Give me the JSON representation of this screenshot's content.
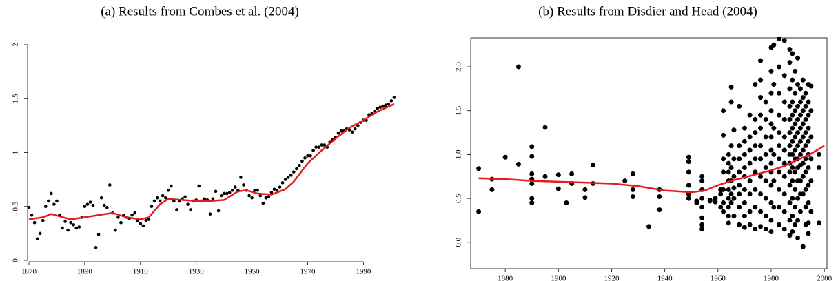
{
  "chart_data": [
    {
      "type": "scatter",
      "title": "(a) Results from Combes et al. (2004)",
      "xlim": [
        1870,
        2003
      ],
      "ylim": [
        0,
        2
      ],
      "xticks": [
        1870,
        1890,
        1910,
        1930,
        1950,
        1970,
        1990
      ],
      "yticks": [
        0,
        0.5,
        1,
        1.5,
        2
      ],
      "box": false,
      "series": [
        {
          "type": "scatter",
          "color": "#000000",
          "x": [
            1870,
            1871,
            1872,
            1873,
            1874,
            1875,
            1876,
            1877,
            1878,
            1879,
            1880,
            1881,
            1882,
            1883,
            1884,
            1885,
            1886,
            1887,
            1888,
            1889,
            1890,
            1891,
            1892,
            1893,
            1894,
            1895,
            1896,
            1897,
            1898,
            1899,
            1900,
            1901,
            1902,
            1903,
            1904,
            1905,
            1906,
            1907,
            1908,
            1909,
            1910,
            1911,
            1912,
            1913,
            1914,
            1915,
            1916,
            1917,
            1918,
            1919,
            1920,
            1921,
            1922,
            1923,
            1924,
            1925,
            1926,
            1927,
            1928,
            1929,
            1930,
            1931,
            1932,
            1933,
            1934,
            1935,
            1936,
            1937,
            1938,
            1939,
            1940,
            1941,
            1942,
            1943,
            1944,
            1945,
            1946,
            1947,
            1948,
            1949,
            1950,
            1951,
            1952,
            1953,
            1954,
            1955,
            1956,
            1957,
            1958,
            1959,
            1960,
            1961,
            1962,
            1963,
            1964,
            1965,
            1966,
            1967,
            1968,
            1969,
            1970,
            1971,
            1972,
            1973,
            1974,
            1975,
            1976,
            1977,
            1978,
            1979,
            1980,
            1981,
            1982,
            1983,
            1984,
            1985,
            1986,
            1987,
            1988,
            1989,
            1990,
            1991,
            1992,
            1993,
            1994,
            1995,
            1996,
            1997,
            1998,
            1999,
            2000,
            2001
          ],
          "values": [
            0.49,
            0.42,
            0.35,
            0.2,
            0.25,
            0.37,
            0.5,
            0.55,
            0.62,
            0.52,
            0.55,
            0.42,
            0.3,
            0.36,
            0.28,
            0.35,
            0.33,
            0.3,
            0.31,
            0.4,
            0.5,
            0.52,
            0.54,
            0.51,
            0.12,
            0.24,
            0.58,
            0.51,
            0.49,
            0.7,
            0.44,
            0.28,
            0.4,
            0.35,
            0.42,
            0.4,
            0.39,
            0.42,
            0.44,
            0.37,
            0.34,
            0.32,
            0.37,
            0.38,
            0.5,
            0.55,
            0.58,
            0.55,
            0.6,
            0.58,
            0.65,
            0.69,
            0.55,
            0.47,
            0.55,
            0.57,
            0.59,
            0.52,
            0.47,
            0.55,
            0.56,
            0.69,
            0.55,
            0.57,
            0.56,
            0.43,
            0.57,
            0.64,
            0.46,
            0.6,
            0.62,
            0.62,
            0.63,
            0.65,
            0.68,
            0.65,
            0.77,
            0.7,
            0.65,
            0.6,
            0.58,
            0.65,
            0.65,
            0.6,
            0.53,
            0.58,
            0.59,
            0.63,
            0.66,
            0.65,
            0.68,
            0.72,
            0.75,
            0.77,
            0.79,
            0.82,
            0.85,
            0.88,
            0.92,
            0.95,
            0.97,
            0.97,
            1.02,
            1.05,
            1.05,
            1.07,
            1.07,
            1.05,
            1.1,
            1.12,
            1.14,
            1.18,
            1.2,
            1.2,
            1.22,
            1.21,
            1.19,
            1.22,
            1.25,
            1.28,
            1.3,
            1.3,
            1.35,
            1.36,
            1.38,
            1.41,
            1.42,
            1.43,
            1.44,
            1.45,
            1.48,
            1.51
          ]
        },
        {
          "type": "line",
          "color": "#e8191c",
          "x": [
            1870,
            1875,
            1878,
            1885,
            1890,
            1895,
            1900,
            1905,
            1910,
            1913,
            1917,
            1920,
            1925,
            1930,
            1935,
            1940,
            1945,
            1948,
            1952,
            1957,
            1962,
            1965,
            1970,
            1975,
            1980,
            1985,
            1990,
            1995,
            2001
          ],
          "values": [
            0.38,
            0.4,
            0.43,
            0.38,
            0.4,
            0.42,
            0.44,
            0.4,
            0.38,
            0.4,
            0.52,
            0.57,
            0.56,
            0.55,
            0.55,
            0.56,
            0.64,
            0.65,
            0.62,
            0.61,
            0.66,
            0.73,
            0.9,
            1.02,
            1.13,
            1.23,
            1.3,
            1.38,
            1.45
          ]
        }
      ]
    },
    {
      "type": "scatter",
      "title": "(b) Results from Disdier and Head (2004)",
      "xlim": [
        1867,
        2001
      ],
      "ylim": [
        -0.3,
        2.33
      ],
      "xticks": [
        1880,
        1900,
        1920,
        1940,
        1960,
        1980,
        2000
      ],
      "yticks": [
        {
          "value": 0,
          "label": "0.0"
        },
        0.5,
        {
          "value": 1,
          "label": "1.0"
        },
        1.5,
        {
          "value": 2,
          "label": "2.0"
        }
      ],
      "box": true,
      "series": [
        {
          "type": "scatter",
          "color": "#000000",
          "x": [
            1870,
            1870,
            1875,
            1875,
            1880,
            1885,
            1885,
            1890,
            1890,
            1890,
            1890,
            1890,
            1890,
            1890,
            1895,
            1895,
            1900,
            1900,
            1903,
            1905,
            1905,
            1910,
            1910,
            1913,
            1913,
            1925,
            1928,
            1928,
            1928,
            1934,
            1938,
            1938,
            1938,
            1949,
            1949,
            1949,
            1949,
            1949,
            1949,
            1952,
            1952,
            1954,
            1954,
            1954,
            1954,
            1954,
            1954,
            1954,
            1954,
            1957,
            1957,
            1959,
            1959,
            1961,
            1961,
            1961,
            1962,
            1962,
            1962,
            1962,
            1962,
            1962,
            1962,
            1964,
            1964,
            1964,
            1964,
            1964,
            1964,
            1964,
            1964,
            1964,
            1965,
            1965,
            1965,
            1965,
            1965,
            1965,
            1965,
            1966,
            1966,
            1966,
            1966,
            1966,
            1966,
            1968,
            1968,
            1968,
            1968,
            1968,
            1968,
            1968,
            1968,
            1970,
            1970,
            1970,
            1970,
            1970,
            1970,
            1970,
            1970,
            1970,
            1972,
            1972,
            1972,
            1972,
            1972,
            1972,
            1972,
            1972,
            1974,
            1974,
            1974,
            1974,
            1974,
            1974,
            1974,
            1974,
            1974,
            1976,
            1976,
            1976,
            1976,
            1976,
            1976,
            1976,
            1976,
            1976,
            1976,
            1976,
            1978,
            1978,
            1978,
            1978,
            1978,
            1978,
            1978,
            1978,
            1978,
            1980,
            1980,
            1980,
            1980,
            1980,
            1980,
            1980,
            1980,
            1980,
            1980,
            1980,
            1980,
            1980,
            1981,
            1981,
            1981,
            1981,
            1981,
            1981,
            1983,
            1983,
            1983,
            1983,
            1983,
            1983,
            1983,
            1983,
            1983,
            1983,
            1983,
            1985,
            1985,
            1985,
            1985,
            1985,
            1985,
            1985,
            1985,
            1985,
            1985,
            1985,
            1987,
            1987,
            1987,
            1987,
            1987,
            1987,
            1987,
            1987,
            1987,
            1987,
            1987,
            1987,
            1987,
            1987,
            1988,
            1988,
            1988,
            1988,
            1988,
            1988,
            1988,
            1988,
            1988,
            1988,
            1988,
            1988,
            1989,
            1989,
            1989,
            1989,
            1989,
            1989,
            1989,
            1989,
            1989,
            1989,
            1989,
            1990,
            1990,
            1990,
            1990,
            1990,
            1990,
            1990,
            1990,
            1990,
            1990,
            1990,
            1990,
            1991,
            1991,
            1991,
            1991,
            1991,
            1991,
            1991,
            1991,
            1991,
            1991,
            1992,
            1992,
            1992,
            1992,
            1992,
            1992,
            1992,
            1992,
            1992,
            1992,
            1993,
            1993,
            1993,
            1993,
            1993,
            1993,
            1993,
            1993,
            1993,
            1993,
            1994,
            1994,
            1994,
            1994,
            1994,
            1994,
            1994,
            1994,
            1994,
            1994,
            1994,
            1995,
            1995,
            1995,
            1995,
            1995,
            1995,
            1998,
            1998,
            1998
          ],
          "values": [
            0.84,
            0.35,
            0.72,
            0.6,
            0.97,
            2.0,
            0.89,
            1.09,
            0.98,
            0.78,
            0.72,
            0.67,
            0.5,
            0.45,
            1.31,
            0.75,
            0.77,
            0.61,
            0.45,
            0.78,
            0.67,
            0.6,
            0.51,
            0.88,
            0.67,
            0.7,
            0.78,
            0.6,
            0.52,
            0.18,
            0.6,
            0.52,
            0.37,
            0.97,
            0.92,
            0.8,
            0.65,
            0.55,
            0.5,
            0.47,
            0.45,
            0.75,
            0.7,
            0.6,
            0.5,
            0.4,
            0.28,
            0.2,
            0.15,
            0.48,
            0.47,
            0.46,
            0.5,
            0.55,
            0.6,
            0.4,
            1.5,
            1.22,
            0.95,
            0.8,
            0.6,
            0.45,
            0.35,
            1.0,
            0.9,
            0.8,
            0.7,
            0.6,
            0.5,
            0.4,
            0.3,
            0.22,
            1.77,
            1.6,
            1.1,
            0.85,
            0.7,
            0.55,
            0.45,
            1.28,
            0.95,
            0.75,
            0.62,
            0.5,
            0.3,
            1.55,
            1.1,
            0.95,
            0.8,
            0.65,
            0.55,
            0.4,
            0.2,
            1.3,
            1.15,
            1.0,
            0.85,
            0.75,
            0.6,
            0.45,
            0.3,
            0.17,
            1.45,
            1.2,
            1.05,
            0.9,
            0.7,
            0.55,
            0.35,
            0.2,
            1.8,
            1.4,
            1.25,
            1.1,
            0.95,
            0.8,
            0.6,
            0.4,
            0.15,
            2.07,
            1.85,
            1.65,
            1.45,
            1.3,
            1.1,
            0.95,
            0.75,
            0.55,
            0.35,
            0.18,
            1.6,
            1.4,
            1.2,
            1.0,
            0.85,
            0.7,
            0.5,
            0.3,
            0.15,
            2.22,
            1.95,
            1.7,
            1.5,
            1.35,
            1.2,
            1.05,
            0.9,
            0.8,
            0.65,
            0.45,
            0.25,
            0.12,
            2.25,
            1.8,
            1.3,
            1.0,
            0.7,
            0.4,
            2.32,
            2.0,
            1.7,
            1.45,
            1.25,
            1.1,
            0.95,
            0.8,
            0.6,
            0.4,
            0.2,
            2.3,
            1.9,
            1.6,
            1.4,
            1.2,
            1.05,
            0.9,
            0.75,
            0.55,
            0.35,
            0.15,
            2.2,
            2.05,
            1.75,
            1.55,
            1.4,
            1.25,
            1.1,
            1.0,
            0.9,
            0.8,
            0.65,
            0.45,
            0.25,
            0.08,
            2.15,
            1.85,
            1.6,
            1.45,
            1.3,
            1.15,
            1.0,
            0.85,
            0.7,
            0.5,
            0.3,
            0.12,
            1.95,
            1.7,
            1.5,
            1.35,
            1.2,
            1.05,
            0.95,
            0.8,
            0.6,
            0.4,
            0.2,
            2.1,
            1.8,
            1.55,
            1.4,
            1.25,
            1.1,
            0.95,
            0.85,
            0.7,
            0.5,
            0.25,
            0.05,
            1.75,
            1.6,
            1.45,
            1.3,
            1.15,
            1.0,
            0.88,
            0.7,
            0.55,
            0.35,
            1.85,
            1.65,
            1.5,
            1.35,
            1.2,
            1.05,
            0.9,
            0.75,
            0.55,
            -0.05,
            1.7,
            1.55,
            1.4,
            1.25,
            1.1,
            0.95,
            0.8,
            0.6,
            0.4,
            0.2,
            1.8,
            1.6,
            1.45,
            1.3,
            1.15,
            1.0,
            0.85,
            0.65,
            0.45,
            0.22,
            0.1,
            1.78,
            1.5,
            1.2,
            0.95,
            0.7,
            0.35,
            1.0,
            0.85,
            0.22
          ]
        },
        {
          "type": "line",
          "color": "#e8191c",
          "x": [
            1870,
            1880,
            1890,
            1900,
            1910,
            1920,
            1930,
            1940,
            1950,
            1955,
            1960,
            1965,
            1970,
            1975,
            1980,
            1985,
            1990,
            1995,
            2000
          ],
          "values": [
            0.73,
            0.72,
            0.7,
            0.69,
            0.68,
            0.67,
            0.64,
            0.59,
            0.57,
            0.59,
            0.65,
            0.7,
            0.74,
            0.78,
            0.82,
            0.87,
            0.94,
            1.01,
            1.1
          ]
        }
      ]
    }
  ]
}
